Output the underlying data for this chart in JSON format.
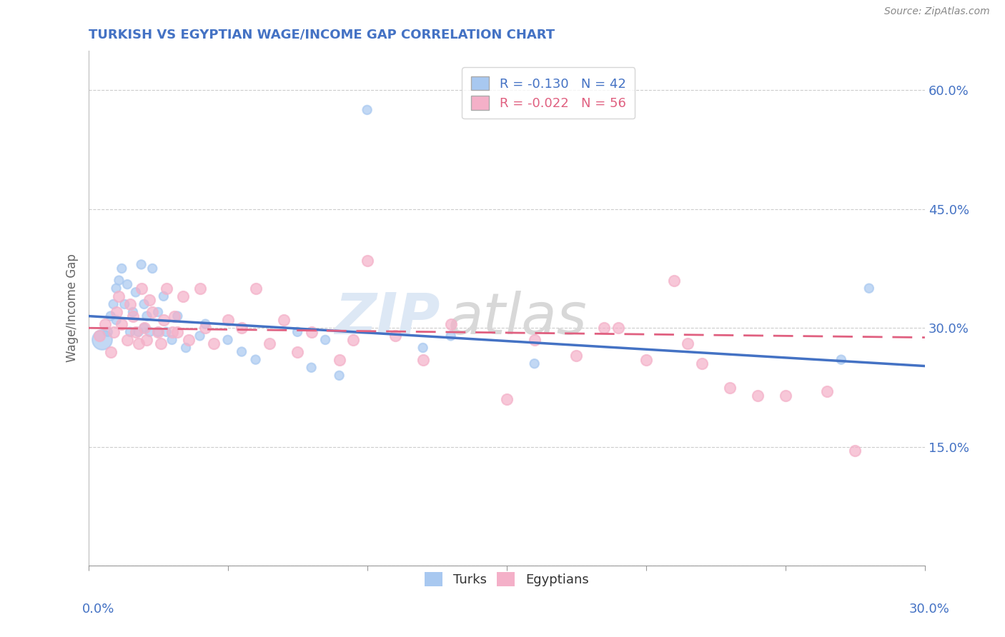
{
  "title": "TURKISH VS EGYPTIAN WAGE/INCOME GAP CORRELATION CHART",
  "source": "Source: ZipAtlas.com",
  "ylabel": "Wage/Income Gap",
  "yticks": [
    0.0,
    0.15,
    0.3,
    0.45,
    0.6
  ],
  "ytick_labels": [
    "",
    "15.0%",
    "30.0%",
    "45.0%",
    "60.0%"
  ],
  "xlim": [
    0.0,
    0.3
  ],
  "ylim": [
    0.0,
    0.65
  ],
  "turks_R": -0.13,
  "turks_N": 42,
  "egyptians_R": -0.022,
  "egyptians_N": 56,
  "turks_color": "#a8c8f0",
  "egyptians_color": "#f4b0c8",
  "turks_line_color": "#4472c4",
  "egyptians_line_color": "#e06080",
  "watermark_zip": "ZIP",
  "watermark_atlas": "atlas",
  "background_color": "#ffffff",
  "turks_x": [
    0.005,
    0.007,
    0.008,
    0.009,
    0.01,
    0.01,
    0.011,
    0.012,
    0.013,
    0.014,
    0.015,
    0.016,
    0.017,
    0.018,
    0.019,
    0.02,
    0.02,
    0.021,
    0.022,
    0.023,
    0.025,
    0.025,
    0.027,
    0.028,
    0.03,
    0.032,
    0.035,
    0.04,
    0.042,
    0.05,
    0.055,
    0.06,
    0.075,
    0.08,
    0.085,
    0.09,
    0.1,
    0.12,
    0.13,
    0.16,
    0.27,
    0.28
  ],
  "turks_y": [
    0.285,
    0.295,
    0.315,
    0.33,
    0.31,
    0.35,
    0.36,
    0.375,
    0.33,
    0.355,
    0.295,
    0.32,
    0.345,
    0.295,
    0.38,
    0.3,
    0.33,
    0.315,
    0.295,
    0.375,
    0.295,
    0.32,
    0.34,
    0.295,
    0.285,
    0.315,
    0.275,
    0.29,
    0.305,
    0.285,
    0.27,
    0.26,
    0.295,
    0.25,
    0.285,
    0.24,
    0.575,
    0.275,
    0.29,
    0.255,
    0.26,
    0.35
  ],
  "turks_sizes": [
    400,
    80,
    80,
    80,
    80,
    80,
    80,
    80,
    80,
    80,
    80,
    80,
    80,
    80,
    80,
    80,
    80,
    80,
    80,
    80,
    80,
    80,
    80,
    80,
    80,
    80,
    80,
    80,
    80,
    80,
    80,
    80,
    80,
    80,
    80,
    80,
    80,
    80,
    80,
    80,
    80,
    80
  ],
  "egyptians_x": [
    0.004,
    0.006,
    0.008,
    0.009,
    0.01,
    0.011,
    0.012,
    0.014,
    0.015,
    0.016,
    0.017,
    0.018,
    0.019,
    0.02,
    0.021,
    0.022,
    0.023,
    0.025,
    0.026,
    0.027,
    0.028,
    0.03,
    0.031,
    0.032,
    0.034,
    0.036,
    0.04,
    0.042,
    0.045,
    0.05,
    0.055,
    0.06,
    0.065,
    0.07,
    0.075,
    0.08,
    0.09,
    0.095,
    0.1,
    0.11,
    0.12,
    0.13,
    0.15,
    0.16,
    0.175,
    0.185,
    0.19,
    0.2,
    0.21,
    0.215,
    0.22,
    0.23,
    0.24,
    0.25,
    0.265,
    0.275
  ],
  "egyptians_y": [
    0.29,
    0.305,
    0.27,
    0.295,
    0.32,
    0.34,
    0.305,
    0.285,
    0.33,
    0.315,
    0.295,
    0.28,
    0.35,
    0.3,
    0.285,
    0.335,
    0.32,
    0.295,
    0.28,
    0.31,
    0.35,
    0.295,
    0.315,
    0.295,
    0.34,
    0.285,
    0.35,
    0.3,
    0.28,
    0.31,
    0.3,
    0.35,
    0.28,
    0.31,
    0.27,
    0.295,
    0.26,
    0.285,
    0.385,
    0.29,
    0.26,
    0.305,
    0.21,
    0.285,
    0.265,
    0.3,
    0.3,
    0.26,
    0.36,
    0.28,
    0.255,
    0.225,
    0.215,
    0.215,
    0.22,
    0.145
  ],
  "turks_line_x0": 0.0,
  "turks_line_y0": 0.315,
  "turks_line_x1": 0.3,
  "turks_line_y1": 0.252,
  "egypt_line_x0": 0.0,
  "egypt_line_y0": 0.3,
  "egypt_line_x1": 0.3,
  "egypt_line_y1": 0.288
}
